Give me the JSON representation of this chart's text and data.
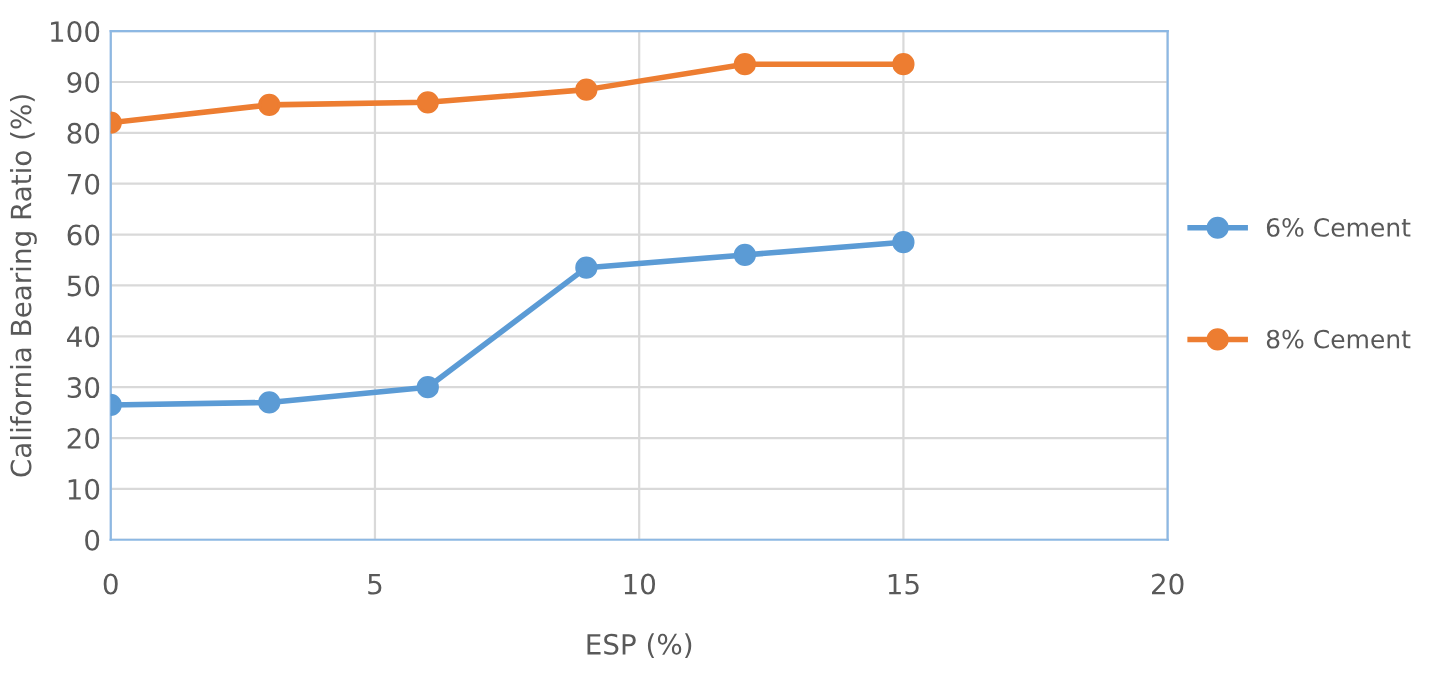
{
  "chart_data": {
    "type": "line",
    "xlabel": "ESP (%)",
    "ylabel": "California Bearing Ratio (%)",
    "x": [
      0,
      3,
      6,
      9,
      12,
      15
    ],
    "series": [
      {
        "name": "6% Cement",
        "color": "#5b9bd5",
        "values": [
          26.5,
          27,
          30,
          53.5,
          56,
          58.5
        ]
      },
      {
        "name": "8% Cement",
        "color": "#ed7d31",
        "values": [
          82,
          85.5,
          86,
          88.5,
          93.5,
          93.5
        ]
      }
    ],
    "xlim": [
      0,
      20
    ],
    "xticks": [
      0,
      5,
      10,
      15,
      20
    ],
    "ylim": [
      0,
      100
    ],
    "yticks": [
      0,
      10,
      20,
      30,
      40,
      50,
      60,
      70,
      80,
      90,
      100
    ],
    "grid": true,
    "legend": "right",
    "marker": "circle",
    "line_style": "solid"
  }
}
